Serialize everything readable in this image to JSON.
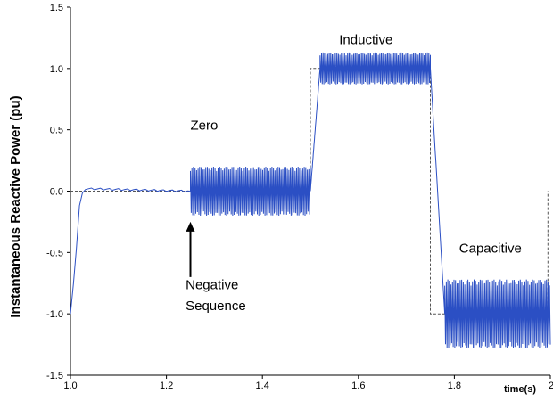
{
  "chart_data": {
    "type": "line",
    "title": "",
    "xlabel": "time(s)",
    "ylabel": "Instantaneous Reactive Power (pu)",
    "xlim": [
      1.0,
      2.0
    ],
    "ylim": [
      -1.5,
      1.5
    ],
    "x_ticks": [
      "1.0",
      "1.2",
      "1.4",
      "1.6",
      "1.8",
      "2.0"
    ],
    "y_ticks": [
      "1.5",
      "1.0",
      "0.5",
      "0.0",
      "-0.5",
      "-1.0",
      "-1.5"
    ],
    "grid": false,
    "colors": {
      "measured": "#2b4fc4",
      "reference": "#555555",
      "frame": "#000000"
    },
    "series": [
      {
        "style": "dashed",
        "x": [
          1.0,
          1.5,
          1.5,
          1.75,
          1.75,
          1.995,
          1.995
        ],
        "y": [
          0.0,
          0.0,
          1.0,
          1.0,
          -1.0,
          -1.0,
          0.0
        ]
      },
      {
        "style": "oscillating",
        "segments": [
          {
            "x": [
              1.0,
              1.01,
              1.02,
              1.03,
              1.25
            ],
            "y": [
              -1.0,
              -0.6,
              -0.05,
              0.02,
              0.0
            ],
            "amplitude": 0.0
          },
          {
            "x": [
              1.25,
              1.5
            ],
            "y": [
              0.0,
              0.0
            ],
            "amplitude": 0.2
          },
          {
            "x": [
              1.5,
              1.52
            ],
            "y": [
              0.0,
              1.0
            ],
            "amplitude": 0.0
          },
          {
            "x": [
              1.52,
              1.75
            ],
            "y": [
              1.0,
              1.0
            ],
            "amplitude": 0.13
          },
          {
            "x": [
              1.75,
              1.78
            ],
            "y": [
              1.0,
              -1.0
            ],
            "amplitude": 0.0
          },
          {
            "x": [
              1.78,
              2.0
            ],
            "y": [
              -1.0,
              -1.0
            ],
            "amplitude": 0.28
          }
        ]
      }
    ],
    "annotations": [
      {
        "text": "Zero",
        "x": 1.25,
        "y": 0.5
      },
      {
        "text": "Inductive",
        "x": 1.56,
        "y": 1.2
      },
      {
        "text": "Capacitive",
        "x": 1.81,
        "y": -0.5
      },
      {
        "text": "Negative",
        "x": 1.24,
        "y": -0.8
      },
      {
        "text": "Sequence",
        "x": 1.24,
        "y": -0.97
      }
    ],
    "arrow": {
      "from": [
        1.25,
        -0.7
      ],
      "to": [
        1.25,
        -0.25
      ]
    }
  }
}
